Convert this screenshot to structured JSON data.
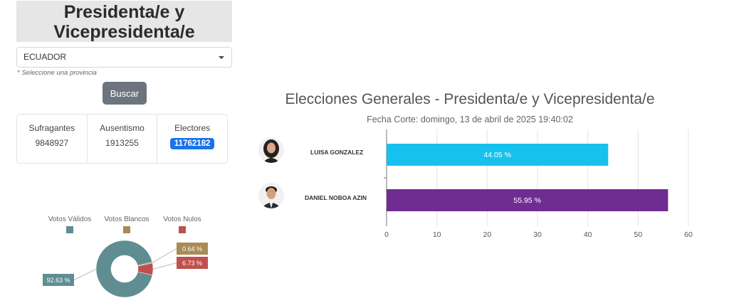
{
  "header": {
    "title": "Presidenta/e y Vicepresidenta/e"
  },
  "filter": {
    "selected": "ECUADOR",
    "hint": "* Seleccione una provincia",
    "search_label": "Buscar"
  },
  "stats": [
    {
      "label": "Sufragantes",
      "value": "9848927"
    },
    {
      "label": "Ausentismo",
      "value": "1913255"
    },
    {
      "label": "Electores",
      "value": "11762182"
    }
  ],
  "colors": {
    "valid": "#5f8d92",
    "blank": "#a98b55",
    "null": "#c0504d",
    "bar1": "#17c1ee",
    "bar2": "#6f2d91"
  },
  "chart_data": [
    {
      "type": "pie",
      "legend": [
        "Votos Válidos",
        "Votos Blancos",
        "Votos Nulos"
      ],
      "values": [
        92.63,
        0.64,
        6.73
      ],
      "labels": [
        "92.63 %",
        "0.64 %",
        "6.73 %"
      ],
      "legend_position": "top"
    },
    {
      "type": "bar",
      "orientation": "horizontal",
      "title": "Elecciones Generales - Presidenta/e y Vicepresidenta/e",
      "subtitle": "Fecha Corte: domingo, 13 de abril de 2025 19:40:02",
      "categories": [
        "LUISA GONZALEZ",
        "DANIEL NOBOA AZIN"
      ],
      "values": [
        44.05,
        55.95
      ],
      "labels": [
        "44.05 %",
        "55.95 %"
      ],
      "xlim": [
        0,
        60
      ],
      "xticks": [
        "0",
        "10",
        "20",
        "30",
        "40",
        "50",
        "60"
      ],
      "grid": true
    }
  ]
}
